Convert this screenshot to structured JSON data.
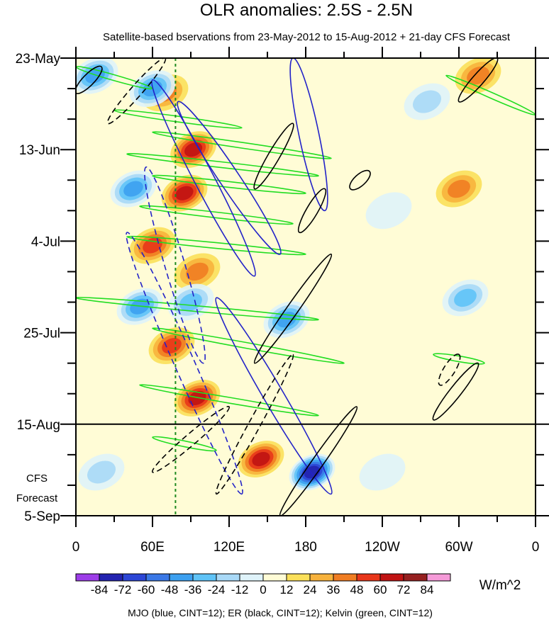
{
  "chart_data": {
    "type": "heatmap",
    "title": "OLR anomalies: 2.5S - 2.5N",
    "subtitle": "Satellite-based bservations from 23-May-2012 to 15-Aug-2012 + 21-day CFS Forecast",
    "x_tick_labels": [
      "0",
      "60E",
      "120E",
      "180",
      "120W",
      "60W",
      "0"
    ],
    "x_tick_lons": [
      0,
      60,
      120,
      180,
      240,
      300,
      360
    ],
    "y_tick_labels": [
      "23-May",
      "13-Jun",
      "4-Jul",
      "25-Jul",
      "15-Aug",
      "5-Sep"
    ],
    "y_tick_days": [
      0,
      21,
      42,
      63,
      84,
      105
    ],
    "forecast_start_day": 84,
    "forecast_label_lines": [
      "CFS",
      "Forecast"
    ],
    "reference_lon": 78,
    "colorbar": {
      "levels": [
        -84,
        -72,
        -60,
        -48,
        -36,
        -24,
        -12,
        0,
        12,
        24,
        36,
        48,
        60,
        72,
        84
      ],
      "tick_labels": [
        "-84",
        "-72",
        "-60",
        "-48",
        "-36",
        "-24",
        "-12",
        "0",
        "12",
        "24",
        "36",
        "48",
        "60",
        "72",
        "84"
      ],
      "colors": [
        "#9d3de8",
        "#2323b0",
        "#2c46d6",
        "#3a78e6",
        "#3ca0f0",
        "#5fc3f7",
        "#a9d9f7",
        "#dff3fa",
        "#fffcd6",
        "#fbe05a",
        "#f7b23c",
        "#f07d22",
        "#e8361a",
        "#c01313",
        "#962020",
        "#f59ad8"
      ],
      "units": "W/m^2"
    },
    "anomaly_blobs": [
      {
        "lon": 92,
        "day": 21,
        "value": 60
      },
      {
        "lon": 85,
        "day": 31,
        "value": 60
      },
      {
        "lon": 70,
        "day": 8,
        "value": 36
      },
      {
        "lon": 60,
        "day": 43,
        "value": 48
      },
      {
        "lon": 95,
        "day": 49,
        "value": 36
      },
      {
        "lon": 95,
        "day": 78,
        "value": 60
      },
      {
        "lon": 75,
        "day": 66,
        "value": 48
      },
      {
        "lon": 145,
        "day": 92,
        "value": 60
      },
      {
        "lon": 185,
        "day": 95,
        "value": -84
      },
      {
        "lon": 60,
        "day": 7,
        "value": -48
      },
      {
        "lon": 45,
        "day": 30,
        "value": -48
      },
      {
        "lon": 50,
        "day": 57,
        "value": -48
      },
      {
        "lon": 90,
        "day": 56,
        "value": -36
      },
      {
        "lon": 165,
        "day": 60,
        "value": -48
      },
      {
        "lon": 15,
        "day": 4,
        "value": -48
      },
      {
        "lon": 300,
        "day": 30,
        "value": 36
      },
      {
        "lon": 315,
        "day": 4,
        "value": 36
      },
      {
        "lon": 305,
        "day": 55,
        "value": -36
      },
      {
        "lon": 275,
        "day": 10,
        "value": -24
      },
      {
        "lon": 245,
        "day": 35,
        "value": -12
      },
      {
        "lon": 20,
        "day": 95,
        "value": -24
      },
      {
        "lon": 240,
        "day": 95,
        "value": -12
      }
    ],
    "contour_groups": [
      {
        "label": "MJO",
        "color": "#2323c8"
      },
      {
        "label": "ER",
        "color": "#000000"
      },
      {
        "label": "Kelvin",
        "color": "#22dd22"
      }
    ],
    "footnote": "MJO (blue, CINT=12); ER (black, CINT=12); Kelvin (green, CINT=12)"
  }
}
